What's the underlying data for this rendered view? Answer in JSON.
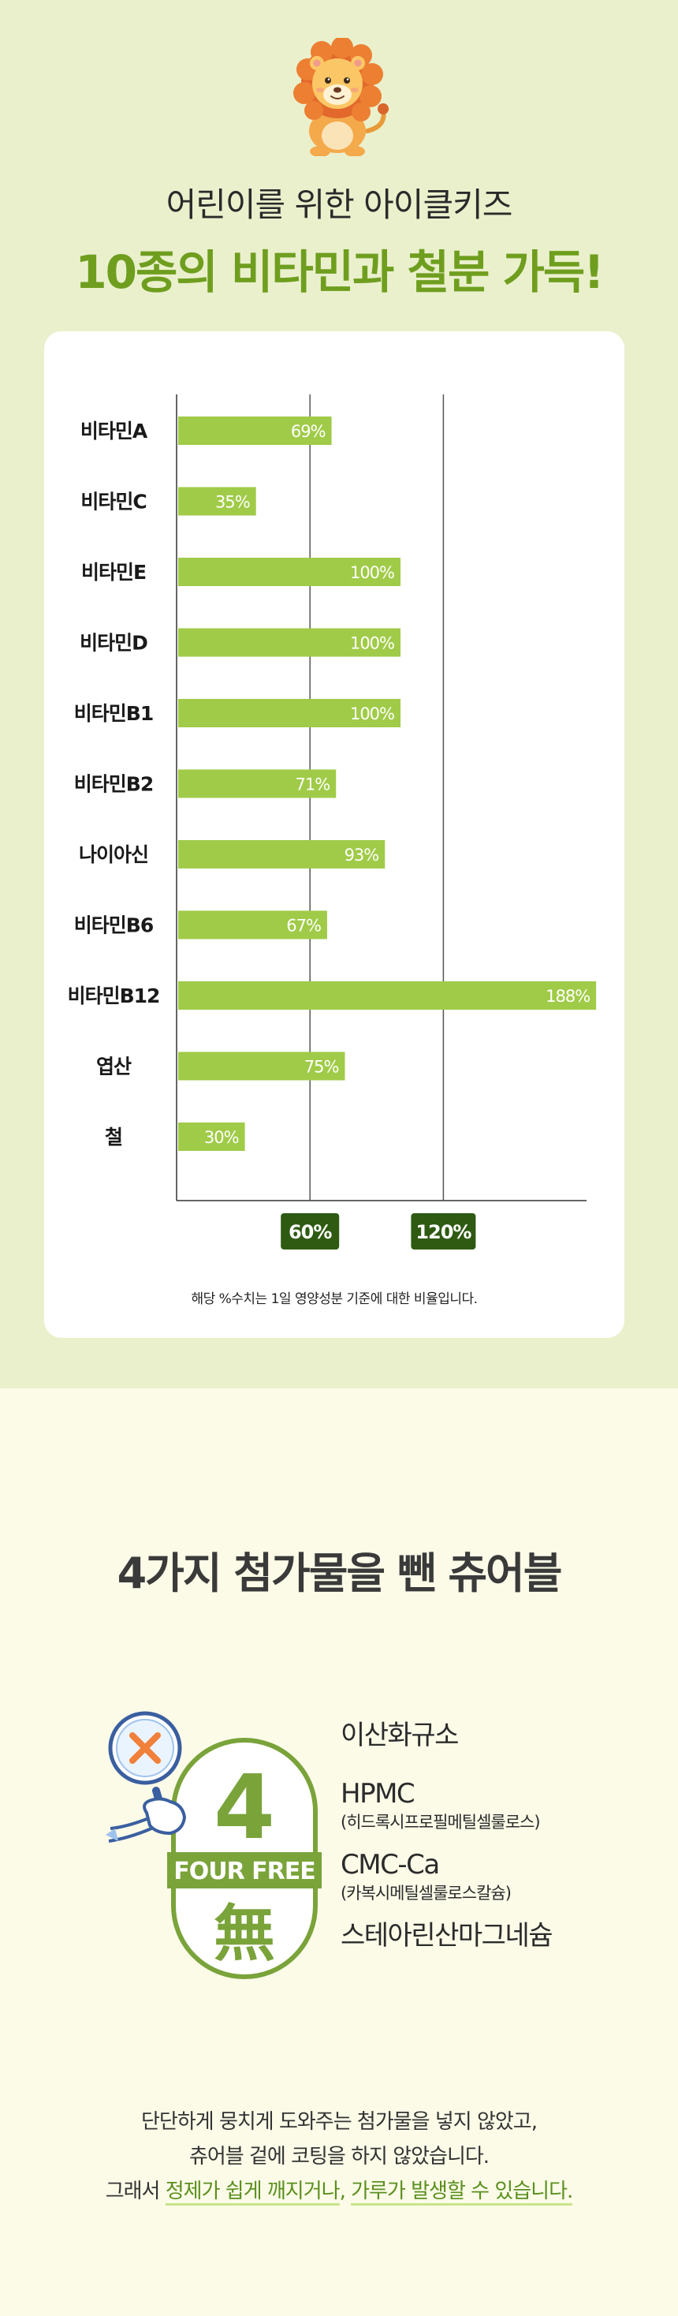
{
  "section1": {
    "headline_line1": "어린이를 위한 아이클키즈",
    "headline_line2": "10종의 비타민과 철분 가득!"
  },
  "chart_data": {
    "type": "bar",
    "orientation": "horizontal",
    "categories": [
      "비타민A",
      "비타민C",
      "비타민E",
      "비타민D",
      "비타민B1",
      "비타민B2",
      "나이아신",
      "비타민B6",
      "비타민B12",
      "엽산",
      "철"
    ],
    "values": [
      69,
      35,
      100,
      100,
      100,
      71,
      93,
      67,
      188,
      75,
      30
    ],
    "value_labels": [
      "69%",
      "35%",
      "100%",
      "100%",
      "100%",
      "71%",
      "93%",
      "67%",
      "188%",
      "75%",
      "30%"
    ],
    "reference_lines": [
      {
        "value": 60,
        "label": "60%"
      },
      {
        "value": 120,
        "label": "120%"
      }
    ],
    "xlim": [
      0,
      200
    ],
    "grid": false,
    "bar_color": "#a0cb48",
    "reference_label_color": "#2e5a12",
    "footnote": "해당 %수치는 1일 영양성분 기준에 대한 비율입니다."
  },
  "section2": {
    "title": "4가지 첨가물을 뺀 츄어블",
    "badge": {
      "number": "4",
      "text": "FOUR FREE",
      "hanja": "無",
      "color": "#7aa33a",
      "icon": "magnifier-x-icon"
    },
    "additives": [
      {
        "name": "이산화규소",
        "detail": ""
      },
      {
        "name": "HPMC",
        "detail": "(히드록시프로필메틸셀룰로스)"
      },
      {
        "name": "CMC-Ca",
        "detail": "(카복시메틸셀룰로스칼슘)"
      },
      {
        "name": "스테아린산마그네슘",
        "detail": ""
      }
    ],
    "description": {
      "line1": "단단하게 뭉치게 도와주는 첨가물을 넣지 않았고,",
      "line2": "츄어블 겉에 코팅을 하지 않았습니다.",
      "line3_prefix": "그래서 ",
      "line3_highlight1": "정제가 쉽게 깨지거나",
      "line3_mid": ", ",
      "line3_highlight2": "가루가 발생할 수 있습니다."
    }
  }
}
